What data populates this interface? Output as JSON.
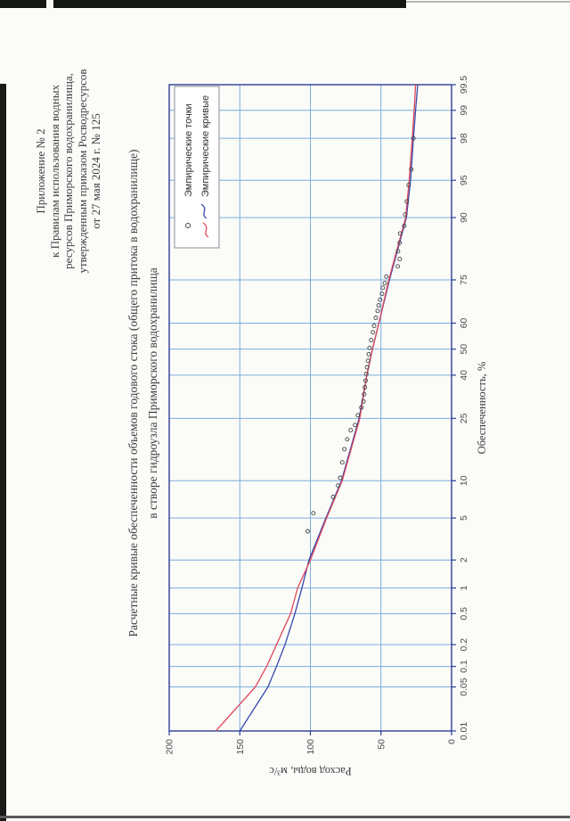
{
  "page": {
    "header_lines": [
      "Приложение № 2",
      "к Правилам использования водных",
      "ресурсов Приморского водохранилища,",
      "утвержденным приказом Росводресурсов",
      "от 27 мая 2024 г. № 125"
    ],
    "title_line1": "Расчетные кривые обеспеченности объемов годового стока (общего притока в водохранилище)",
    "title_line2": "в створе гидроузла Приморского водохранилища"
  },
  "chart_data": {
    "type": "line",
    "x_axis": {
      "label": "Обеспеченность, %",
      "scale": "normal-probability",
      "range": [
        0.01,
        99.5
      ],
      "ticks": [
        0.01,
        0.05,
        0.1,
        0.2,
        0.5,
        1,
        2,
        5,
        10,
        25,
        40,
        50,
        60,
        75,
        90,
        95,
        98,
        99,
        99.5
      ],
      "tick_labels": [
        "0.01",
        "0.05",
        "0.1",
        "0.2",
        "0.5",
        "1",
        "2",
        "5",
        "10",
        "25",
        "40",
        "50",
        "60",
        "75",
        "90",
        "95",
        "98",
        "99",
        "99.5"
      ],
      "grid": true
    },
    "y_axis": {
      "label": "Расход воды, м³/с",
      "range": [
        0,
        200
      ],
      "ticks": [
        0,
        50,
        100,
        150,
        200
      ],
      "grid": true
    },
    "legend": {
      "position": "top-right",
      "entries": [
        {
          "label": "Эмпирические точки",
          "marker": "circle"
        },
        {
          "label": "Эмпирические кривые",
          "marker": "curves"
        }
      ]
    },
    "series": [
      {
        "name": "кривая синяя",
        "color": "#3547ae",
        "points": [
          [
            0.01,
            150
          ],
          [
            0.05,
            130
          ],
          [
            0.1,
            124
          ],
          [
            0.2,
            118
          ],
          [
            0.5,
            111
          ],
          [
            1,
            106
          ],
          [
            2,
            101
          ],
          [
            5,
            89
          ],
          [
            10,
            78
          ],
          [
            25,
            65.5
          ],
          [
            40,
            60
          ],
          [
            50,
            56
          ],
          [
            60,
            51.5
          ],
          [
            75,
            44
          ],
          [
            90,
            32
          ],
          [
            95,
            29
          ],
          [
            98,
            27
          ],
          [
            99,
            25.5
          ],
          [
            99.5,
            24
          ]
        ]
      },
      {
        "name": "кривая красная",
        "color": "#dd4758",
        "points": [
          [
            0.01,
            167
          ],
          [
            0.05,
            139
          ],
          [
            0.1,
            131
          ],
          [
            0.2,
            124
          ],
          [
            0.5,
            114
          ],
          [
            1,
            109
          ],
          [
            2,
            100
          ],
          [
            5,
            88.5
          ],
          [
            10,
            77.5
          ],
          [
            25,
            65
          ],
          [
            40,
            60
          ],
          [
            50,
            56
          ],
          [
            60,
            51.5
          ],
          [
            75,
            44.5
          ],
          [
            90,
            32.5
          ],
          [
            95,
            30
          ],
          [
            98,
            27.8
          ],
          [
            99,
            26.5
          ],
          [
            99.5,
            25.5
          ]
        ]
      }
    ],
    "empirical_points": {
      "color": "#3f4347",
      "points": [
        [
          3.8,
          100
        ],
        [
          5.5,
          96
        ],
        [
          7.5,
          82
        ],
        [
          9.2,
          78.5
        ],
        [
          10.5,
          77
        ],
        [
          13.5,
          75.5
        ],
        [
          16.5,
          74
        ],
        [
          19,
          72
        ],
        [
          21.5,
          69.5
        ],
        [
          23,
          66.5
        ],
        [
          26,
          64.5
        ],
        [
          28.5,
          62
        ],
        [
          30.5,
          60.5
        ],
        [
          33,
          60
        ],
        [
          35.5,
          59.5
        ],
        [
          38,
          59
        ],
        [
          40.5,
          58.5
        ],
        [
          43,
          58
        ],
        [
          45.5,
          57.3
        ],
        [
          48,
          56.8
        ],
        [
          50.5,
          56.2
        ],
        [
          53.5,
          55
        ],
        [
          56.5,
          53.8
        ],
        [
          59,
          53
        ],
        [
          62,
          51.8
        ],
        [
          64.5,
          50.5
        ],
        [
          66.5,
          49.8
        ],
        [
          68.5,
          48.7
        ],
        [
          70.5,
          47.4
        ],
        [
          72.5,
          46.8
        ],
        [
          74,
          45.4
        ],
        [
          76,
          44.3
        ],
        [
          79,
          36.2
        ],
        [
          81,
          34.8
        ],
        [
          83,
          36
        ],
        [
          85,
          34.8
        ],
        [
          87,
          34.6
        ],
        [
          88.5,
          31.6
        ],
        [
          90.5,
          31
        ],
        [
          92.5,
          29.8
        ],
        [
          94.5,
          28.5
        ],
        [
          96,
          26.6
        ],
        [
          98,
          25.1
        ]
      ]
    },
    "colors": {
      "grid": "#7badde",
      "plot_border": "#2e3d96",
      "tick_text": "#4a4e52",
      "axis_title_text": "#3a3e41"
    }
  }
}
